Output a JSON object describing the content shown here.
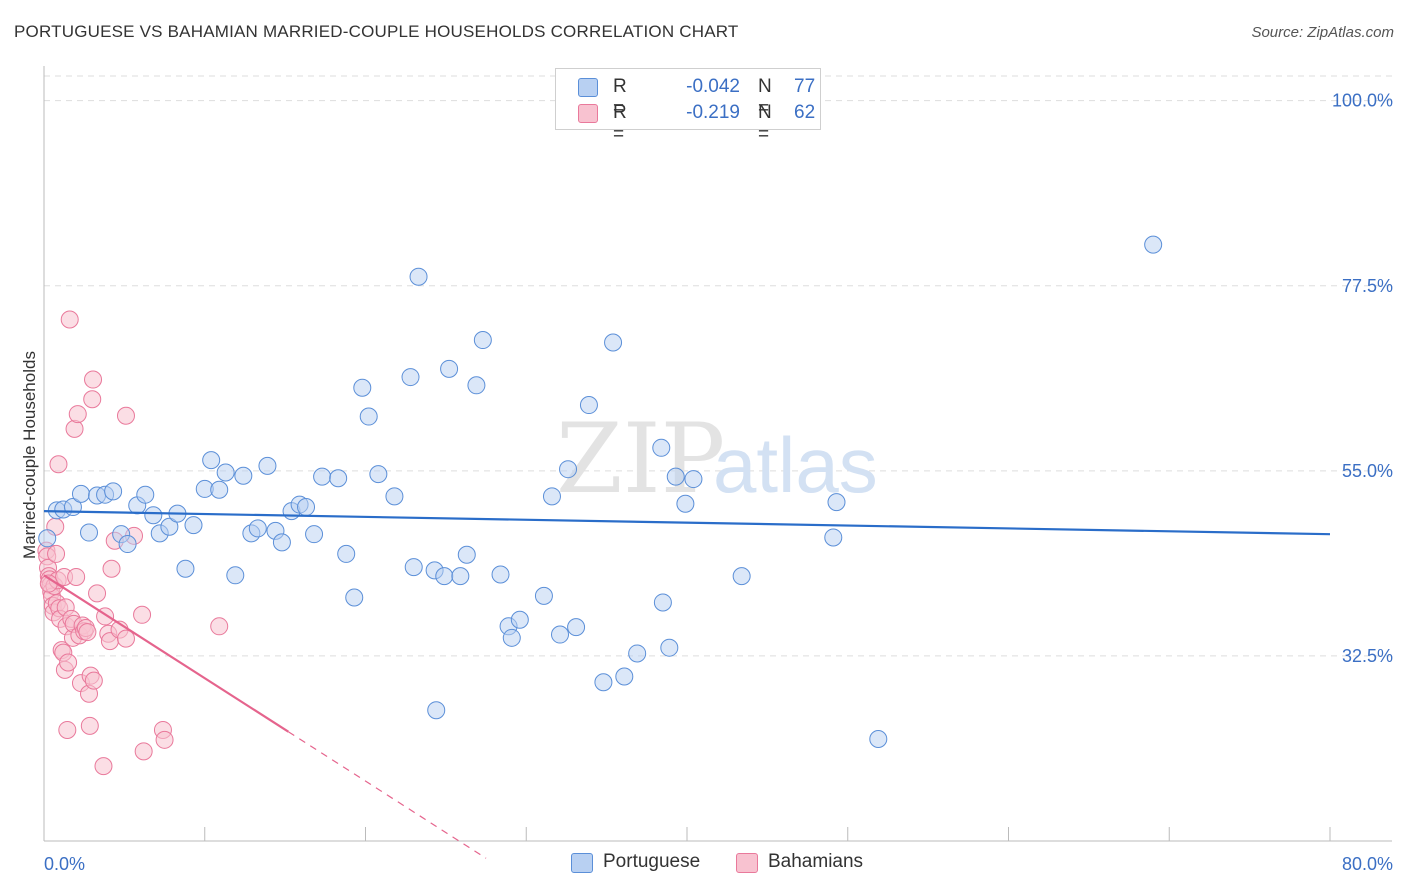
{
  "header": {
    "title": "PORTUGUESE VS BAHAMIAN MARRIED-COUPLE HOUSEHOLDS CORRELATION CHART",
    "source": "Source: ZipAtlas.com"
  },
  "colors": {
    "blue_fill": "#b8d0f2",
    "blue_stroke": "#5b8fd8",
    "blue_line": "#2a6dc9",
    "pink_fill": "#f8c2d0",
    "pink_stroke": "#e9799b",
    "pink_line": "#e5648d",
    "axis_text": "#3b6fc4",
    "grid": "#dddddd"
  },
  "legend": {
    "rows": [
      {
        "r_label": "R =",
        "r_value": "-0.042",
        "n_label": "N =",
        "n_value": "77"
      },
      {
        "r_label": "R =",
        "r_value": "-0.219",
        "n_label": "N =",
        "n_value": "62"
      }
    ]
  },
  "bottom_legend": {
    "portuguese": "Portuguese",
    "bahamians": "Bahamians"
  },
  "watermark": {
    "zip": "ZIP",
    "atlas": "atlas"
  },
  "chart_data": {
    "type": "scatter",
    "title": "PORTUGUESE VS BAHAMIAN MARRIED-COUPLE HOUSEHOLDS CORRELATION CHART",
    "xlabel": "",
    "ylabel": "Married-couple Households",
    "xlim": [
      0,
      80
    ],
    "ylim": [
      10,
      103
    ],
    "x_tick_labels": [
      "0.0%",
      "80.0%"
    ],
    "y_ticks": [
      100,
      77.5,
      55,
      32.5
    ],
    "y_tick_labels": [
      "100.0%",
      "77.5%",
      "55.0%",
      "32.5%"
    ],
    "grid": true,
    "legend_position": "top-center",
    "series": [
      {
        "name": "Portuguese",
        "R": -0.042,
        "N": 77,
        "trend": {
          "x": [
            0,
            80
          ],
          "y": [
            50.1,
            47.3
          ],
          "dashed_from": null
        },
        "points": [
          [
            0.2,
            46.8
          ],
          [
            0.8,
            50.2
          ],
          [
            1.2,
            50.3
          ],
          [
            1.8,
            50.6
          ],
          [
            2.3,
            52.2
          ],
          [
            2.8,
            47.5
          ],
          [
            3.3,
            52.0
          ],
          [
            3.8,
            52.1
          ],
          [
            4.3,
            52.5
          ],
          [
            4.8,
            47.3
          ],
          [
            5.2,
            46.1
          ],
          [
            5.8,
            50.8
          ],
          [
            6.3,
            52.1
          ],
          [
            6.8,
            49.6
          ],
          [
            7.2,
            47.4
          ],
          [
            7.8,
            48.2
          ],
          [
            8.3,
            49.8
          ],
          [
            8.8,
            43.1
          ],
          [
            9.3,
            48.4
          ],
          [
            10.0,
            52.8
          ],
          [
            10.4,
            56.3
          ],
          [
            10.9,
            52.7
          ],
          [
            11.3,
            54.8
          ],
          [
            11.9,
            42.3
          ],
          [
            12.4,
            54.4
          ],
          [
            12.9,
            47.4
          ],
          [
            13.3,
            48.0
          ],
          [
            13.9,
            55.6
          ],
          [
            14.4,
            47.7
          ],
          [
            14.8,
            46.3
          ],
          [
            15.4,
            50.1
          ],
          [
            15.9,
            50.9
          ],
          [
            16.3,
            50.6
          ],
          [
            16.8,
            47.3
          ],
          [
            17.3,
            54.3
          ],
          [
            18.3,
            54.1
          ],
          [
            18.8,
            44.9
          ],
          [
            19.3,
            39.6
          ],
          [
            19.8,
            65.1
          ],
          [
            20.2,
            61.6
          ],
          [
            20.8,
            54.6
          ],
          [
            21.8,
            51.9
          ],
          [
            22.8,
            66.4
          ],
          [
            23.3,
            78.6
          ],
          [
            23.0,
            43.3
          ],
          [
            24.4,
            25.9
          ],
          [
            24.3,
            42.9
          ],
          [
            24.9,
            42.2
          ],
          [
            25.2,
            67.4
          ],
          [
            25.9,
            42.2
          ],
          [
            26.3,
            44.8
          ],
          [
            26.9,
            65.4
          ],
          [
            27.3,
            70.9
          ],
          [
            28.4,
            42.4
          ],
          [
            28.9,
            36.1
          ],
          [
            29.1,
            34.7
          ],
          [
            29.6,
            36.9
          ],
          [
            31.1,
            39.8
          ],
          [
            31.6,
            51.9
          ],
          [
            32.1,
            35.1
          ],
          [
            32.6,
            55.2
          ],
          [
            33.1,
            36.0
          ],
          [
            33.9,
            63.0
          ],
          [
            34.8,
            29.3
          ],
          [
            35.4,
            70.6
          ],
          [
            36.1,
            30.0
          ],
          [
            36.9,
            32.8
          ],
          [
            38.5,
            39.0
          ],
          [
            38.9,
            33.5
          ],
          [
            39.3,
            54.3
          ],
          [
            38.4,
            57.8
          ],
          [
            39.9,
            51.0
          ],
          [
            40.4,
            54.0
          ],
          [
            43.4,
            42.2
          ],
          [
            49.1,
            46.9
          ],
          [
            49.3,
            51.2
          ],
          [
            51.9,
            22.4
          ],
          [
            69.0,
            82.5
          ]
        ]
      },
      {
        "name": "Bahamians",
        "R": -0.219,
        "N": 62,
        "trend": {
          "x": [
            0,
            27.5
          ],
          "y": [
            42.3,
            7.9
          ],
          "dashed_from": 15.2
        },
        "points": [
          [
            0.15,
            45.3
          ],
          [
            0.2,
            44.6
          ],
          [
            0.25,
            43.2
          ],
          [
            0.3,
            42.2
          ],
          [
            0.35,
            41.8
          ],
          [
            0.4,
            41.1
          ],
          [
            0.45,
            40.3
          ],
          [
            0.5,
            39.7
          ],
          [
            0.55,
            38.6
          ],
          [
            0.6,
            37.8
          ],
          [
            0.65,
            41.0
          ],
          [
            0.7,
            48.2
          ],
          [
            0.75,
            44.9
          ],
          [
            0.8,
            38.9
          ],
          [
            0.85,
            41.7
          ],
          [
            0.9,
            55.8
          ],
          [
            0.95,
            38.3
          ],
          [
            1.0,
            37.0
          ],
          [
            1.1,
            33.2
          ],
          [
            1.2,
            32.9
          ],
          [
            1.25,
            42.1
          ],
          [
            1.3,
            30.8
          ],
          [
            1.35,
            38.4
          ],
          [
            1.4,
            36.1
          ],
          [
            1.45,
            23.5
          ],
          [
            1.5,
            31.7
          ],
          [
            1.6,
            73.4
          ],
          [
            1.7,
            37.0
          ],
          [
            1.8,
            34.7
          ],
          [
            1.85,
            36.4
          ],
          [
            1.9,
            60.1
          ],
          [
            2.0,
            42.1
          ],
          [
            2.1,
            61.9
          ],
          [
            2.2,
            35.0
          ],
          [
            2.3,
            29.2
          ],
          [
            2.4,
            36.2
          ],
          [
            2.5,
            35.5
          ],
          [
            2.6,
            35.9
          ],
          [
            2.7,
            35.4
          ],
          [
            2.8,
            27.9
          ],
          [
            2.85,
            24.0
          ],
          [
            2.9,
            30.1
          ],
          [
            3.0,
            63.7
          ],
          [
            3.05,
            66.1
          ],
          [
            3.1,
            29.5
          ],
          [
            3.3,
            40.1
          ],
          [
            3.7,
            19.1
          ],
          [
            3.8,
            37.3
          ],
          [
            4.0,
            35.2
          ],
          [
            4.1,
            34.3
          ],
          [
            4.2,
            43.1
          ],
          [
            4.4,
            46.5
          ],
          [
            4.7,
            35.7
          ],
          [
            5.1,
            34.6
          ],
          [
            5.1,
            61.7
          ],
          [
            5.6,
            47.1
          ],
          [
            6.1,
            37.5
          ],
          [
            6.2,
            20.9
          ],
          [
            7.4,
            23.5
          ],
          [
            7.5,
            22.3
          ],
          [
            10.9,
            36.1
          ],
          [
            0.3,
            41.3
          ]
        ]
      }
    ]
  }
}
